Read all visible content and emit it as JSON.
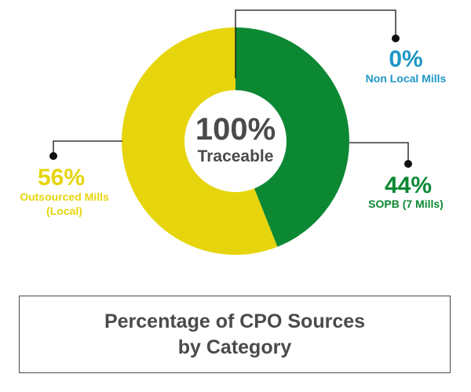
{
  "chart_data": {
    "type": "pie",
    "center": {
      "value": "100%",
      "label": "Traceable"
    },
    "slices": [
      {
        "value": "0%",
        "label": "Non Local Mills",
        "percent": 0,
        "color": "#1e97c6"
      },
      {
        "value": "44%",
        "label": "SOPB (7 Mills)",
        "percent": 44,
        "color": "#0c8833"
      },
      {
        "value": "56%",
        "label": "Outsourced Mills\n(Local)",
        "percent": 56,
        "color": "#e6d50c"
      }
    ],
    "colors": {
      "center_text": "#4a4a4a",
      "leader_line": "#111111"
    }
  },
  "caption": {
    "text": "Percentage of CPO Sources\nby Category",
    "color": "#4a4a4a"
  }
}
